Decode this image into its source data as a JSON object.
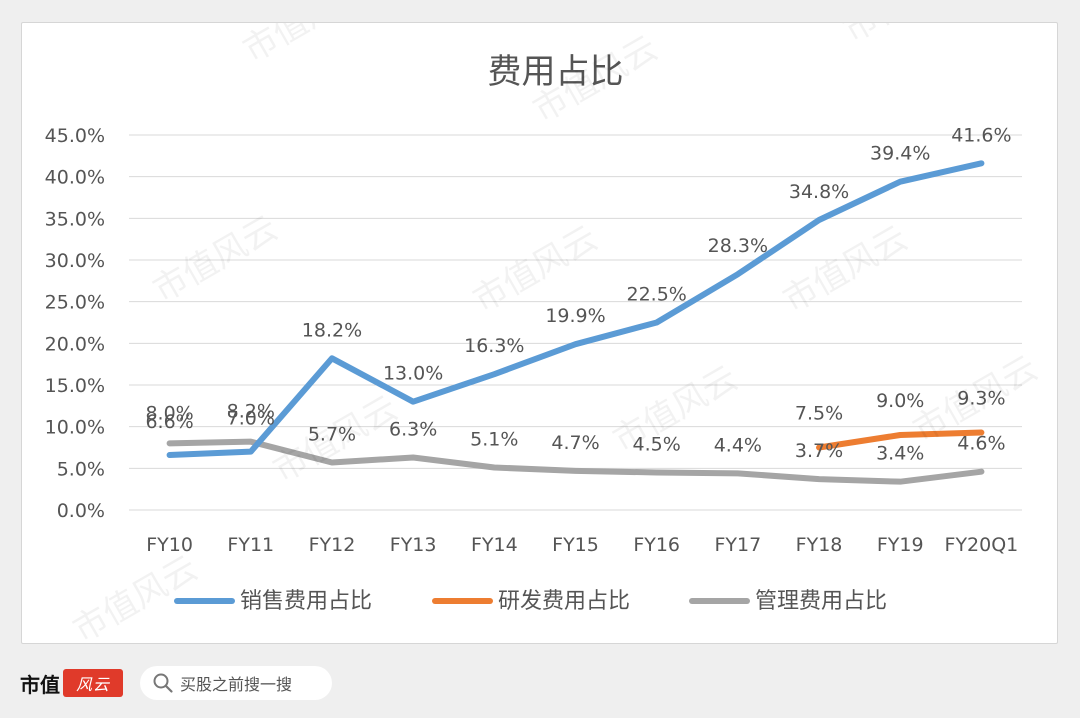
{
  "chart_data": {
    "type": "line",
    "title": "费用占比",
    "categories": [
      "FY10",
      "FY11",
      "FY12",
      "FY13",
      "FY14",
      "FY15",
      "FY16",
      "FY17",
      "FY18",
      "FY19",
      "FY20Q1"
    ],
    "yticks": [
      "0.0%",
      "5.0%",
      "10.0%",
      "15.0%",
      "20.0%",
      "25.0%",
      "30.0%",
      "35.0%",
      "40.0%",
      "45.0%"
    ],
    "ylim": [
      0,
      45
    ],
    "grid": true,
    "legend_position": "bottom",
    "series": [
      {
        "name": "销售费用占比",
        "color": "#5b9bd5",
        "values": [
          6.6,
          7.0,
          18.2,
          13.0,
          16.3,
          19.9,
          22.5,
          28.3,
          34.8,
          39.4,
          41.6
        ],
        "labels": [
          "6.6%",
          "7.0%",
          "18.2%",
          "13.0%",
          "16.3%",
          "19.9%",
          "22.5%",
          "28.3%",
          "34.8%",
          "39.4%",
          "41.6%"
        ]
      },
      {
        "name": "研发费用占比",
        "color": "#ed7d31",
        "values": [
          null,
          null,
          null,
          null,
          null,
          null,
          null,
          null,
          7.5,
          9.0,
          9.3
        ],
        "labels": [
          null,
          null,
          null,
          null,
          null,
          null,
          null,
          null,
          "7.5%",
          "9.0%",
          "9.3%"
        ]
      },
      {
        "name": "管理费用占比",
        "color": "#a5a5a5",
        "values": [
          8.0,
          8.2,
          5.7,
          6.3,
          5.1,
          4.7,
          4.5,
          4.4,
          3.7,
          3.4,
          4.6
        ],
        "labels": [
          "8.0%",
          "8.2%",
          "5.7%",
          "6.3%",
          "5.1%",
          "4.7%",
          "4.5%",
          "4.4%",
          "3.7%",
          "3.4%",
          "4.6%"
        ]
      }
    ]
  },
  "watermark_text": "市值风云",
  "footer": {
    "brand": "市值",
    "search_placeholder": "买股之前搜一搜",
    "search_icon": "search-icon"
  }
}
